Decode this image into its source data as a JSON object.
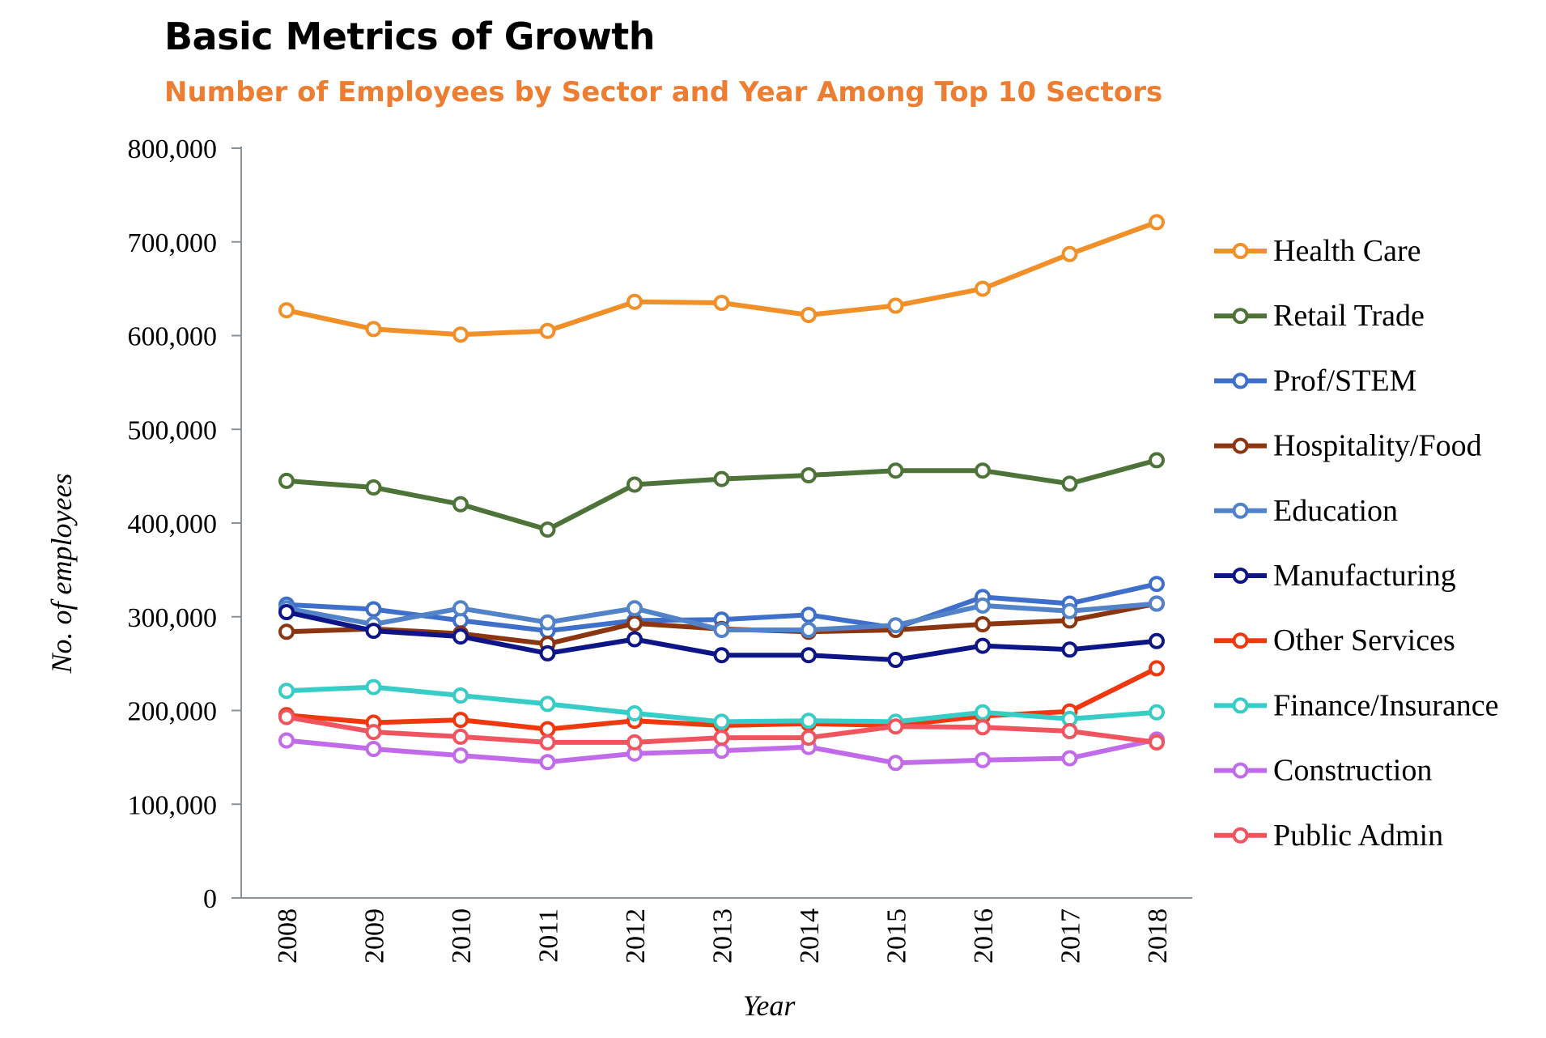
{
  "chart_data": {
    "type": "line",
    "title": "Basic Metrics of Growth",
    "subtitle": "Number of Employees by Sector and Year Among Top 10 Sectors",
    "xlabel": "Year",
    "ylabel": "No. of employees",
    "ylim": [
      0,
      800000
    ],
    "yticks": [
      0,
      100000,
      200000,
      300000,
      400000,
      500000,
      600000,
      700000,
      800000
    ],
    "ytick_labels": [
      "0",
      "100,000",
      "200,000",
      "300,000",
      "400,000",
      "500,000",
      "600,000",
      "700,000",
      "800,000"
    ],
    "categories": [
      "2008",
      "2009",
      "2010",
      "2011",
      "2012",
      "2013",
      "2014",
      "2015",
      "2016",
      "2017",
      "2018"
    ],
    "grid": false,
    "legend_position": "right",
    "series": [
      {
        "name": "Health Care",
        "color": "#F18F28",
        "values": [
          627000,
          607000,
          601000,
          605000,
          636000,
          635000,
          622000,
          632000,
          650000,
          687000,
          721000
        ]
      },
      {
        "name": "Retail Trade",
        "color": "#4E7339",
        "values": [
          445000,
          438000,
          420000,
          393000,
          441000,
          447000,
          451000,
          456000,
          456000,
          442000,
          467000
        ]
      },
      {
        "name": "Prof/STEM",
        "color": "#3E6FCB",
        "values": [
          313000,
          308000,
          296000,
          285000,
          296000,
          297000,
          302000,
          288000,
          321000,
          314000,
          335000
        ]
      },
      {
        "name": "Hospitality/Food",
        "color": "#8B3611",
        "values": [
          284000,
          287000,
          282000,
          271000,
          293000,
          287000,
          284000,
          286000,
          292000,
          296000,
          314000
        ]
      },
      {
        "name": "Education",
        "color": "#5282C8",
        "values": [
          309000,
          292000,
          309000,
          294000,
          309000,
          286000,
          286000,
          291000,
          312000,
          306000,
          314000
        ]
      },
      {
        "name": "Manufacturing",
        "color": "#0E1687",
        "values": [
          305000,
          285000,
          279000,
          261000,
          276000,
          259000,
          259000,
          254000,
          269000,
          265000,
          274000
        ]
      },
      {
        "name": "Other Services",
        "color": "#F0380F",
        "values": [
          195000,
          187000,
          190000,
          180000,
          189000,
          184000,
          186000,
          184000,
          194000,
          199000,
          245000
        ]
      },
      {
        "name": "Finance/Insurance",
        "color": "#38CCC7",
        "values": [
          221000,
          225000,
          216000,
          207000,
          197000,
          188000,
          189000,
          188000,
          198000,
          191000,
          198000
        ]
      },
      {
        "name": "Construction",
        "color": "#C26BEA",
        "values": [
          168000,
          159000,
          152000,
          145000,
          154000,
          157000,
          161000,
          144000,
          147000,
          149000,
          169000
        ]
      },
      {
        "name": "Public Admin",
        "color": "#F0555F",
        "values": [
          193000,
          177000,
          172000,
          166000,
          166000,
          171000,
          171000,
          183000,
          182000,
          178000,
          166000
        ]
      }
    ]
  }
}
